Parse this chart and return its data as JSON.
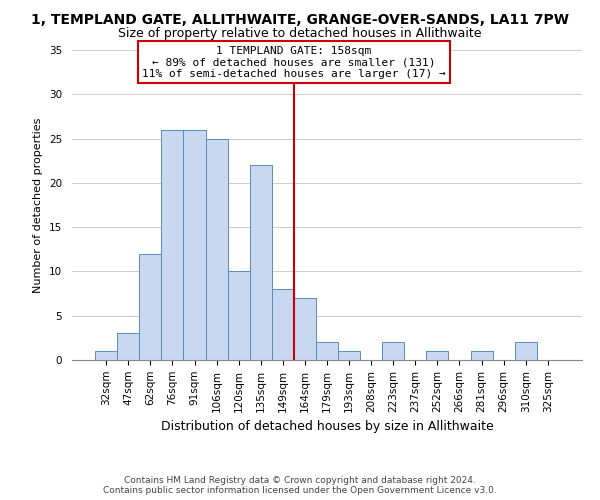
{
  "title": "1, TEMPLAND GATE, ALLITHWAITE, GRANGE-OVER-SANDS, LA11 7PW",
  "subtitle": "Size of property relative to detached houses in Allithwaite",
  "xlabel": "Distribution of detached houses by size in Allithwaite",
  "ylabel": "Number of detached properties",
  "bin_labels": [
    "32sqm",
    "47sqm",
    "62sqm",
    "76sqm",
    "91sqm",
    "106sqm",
    "120sqm",
    "135sqm",
    "149sqm",
    "164sqm",
    "179sqm",
    "193sqm",
    "208sqm",
    "223sqm",
    "237sqm",
    "252sqm",
    "266sqm",
    "281sqm",
    "296sqm",
    "310sqm",
    "325sqm"
  ],
  "bar_heights": [
    1,
    3,
    12,
    26,
    26,
    25,
    10,
    22,
    8,
    7,
    2,
    1,
    0,
    2,
    0,
    1,
    0,
    1,
    0,
    2,
    0
  ],
  "bar_color": "#c8d8f0",
  "bar_edge_color": "#5a8abf",
  "property_line_color": "#cc0000",
  "annotation_text": "1 TEMPLAND GATE: 158sqm\n← 89% of detached houses are smaller (131)\n11% of semi-detached houses are larger (17) →",
  "annotation_box_color": "#ffffff",
  "annotation_box_edge": "#cc0000",
  "ylim": [
    0,
    35
  ],
  "yticks": [
    0,
    5,
    10,
    15,
    20,
    25,
    30,
    35
  ],
  "footer_text": "Contains HM Land Registry data © Crown copyright and database right 2024.\nContains public sector information licensed under the Open Government Licence v3.0.",
  "background_color": "#ffffff",
  "grid_color": "#cccccc",
  "title_fontsize": 10,
  "subtitle_fontsize": 9,
  "ylabel_fontsize": 8,
  "xlabel_fontsize": 9,
  "tick_fontsize": 7.5,
  "annotation_fontsize": 8,
  "footer_fontsize": 6.5
}
